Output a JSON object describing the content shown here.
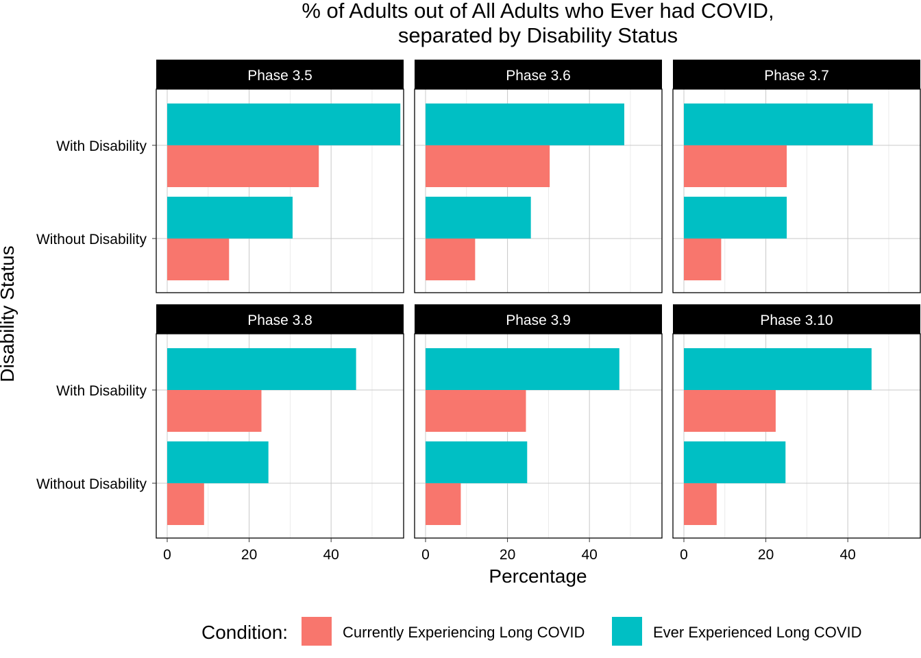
{
  "chart_data": {
    "type": "bar",
    "orientation": "horizontal",
    "title_lines": [
      "% of Adults out of All Adults who Ever had COVID,",
      "separated by Disability Status"
    ],
    "xlabel": "Percentage",
    "ylabel": "Disability Status",
    "xlim": [
      0,
      58
    ],
    "x_ticks": [
      "0",
      "20",
      "40"
    ],
    "categories": [
      "With Disability",
      "Without Disability"
    ],
    "grid": true,
    "legend": {
      "position": "bottom",
      "title": "Condition:",
      "entries": [
        {
          "name": "Currently Experiencing Long COVID",
          "color": "#F8766D"
        },
        {
          "name": "Ever Experienced Long COVID",
          "color": "#00BFC4"
        }
      ]
    },
    "panels": [
      {
        "label": "Phase 3.5",
        "series": [
          {
            "name": "Currently Experiencing Long COVID",
            "values": [
              37.0,
              15.1
            ]
          },
          {
            "name": "Ever Experienced Long COVID",
            "values": [
              56.9,
              30.6
            ]
          }
        ]
      },
      {
        "label": "Phase 3.6",
        "series": [
          {
            "name": "Currently Experiencing Long COVID",
            "values": [
              30.3,
              12.1
            ]
          },
          {
            "name": "Ever Experienced Long COVID",
            "values": [
              48.5,
              25.7
            ]
          }
        ]
      },
      {
        "label": "Phase 3.7",
        "series": [
          {
            "name": "Currently Experiencing Long COVID",
            "values": [
              25.1,
              9.1
            ]
          },
          {
            "name": "Ever Experienced Long COVID",
            "values": [
              46.1,
              25.1
            ]
          }
        ]
      },
      {
        "label": "Phase 3.8",
        "series": [
          {
            "name": "Currently Experiencing Long COVID",
            "values": [
              23.0,
              9.0
            ]
          },
          {
            "name": "Ever Experienced Long COVID",
            "values": [
              46.1,
              24.7
            ]
          }
        ]
      },
      {
        "label": "Phase 3.9",
        "series": [
          {
            "name": "Currently Experiencing Long COVID",
            "values": [
              24.5,
              8.6
            ]
          },
          {
            "name": "Ever Experienced Long COVID",
            "values": [
              47.3,
              24.8
            ]
          }
        ]
      },
      {
        "label": "Phase 3.10",
        "series": [
          {
            "name": "Currently Experiencing Long COVID",
            "values": [
              22.4,
              8.0
            ]
          },
          {
            "name": "Ever Experienced Long COVID",
            "values": [
              45.8,
              24.8
            ]
          }
        ]
      }
    ]
  }
}
